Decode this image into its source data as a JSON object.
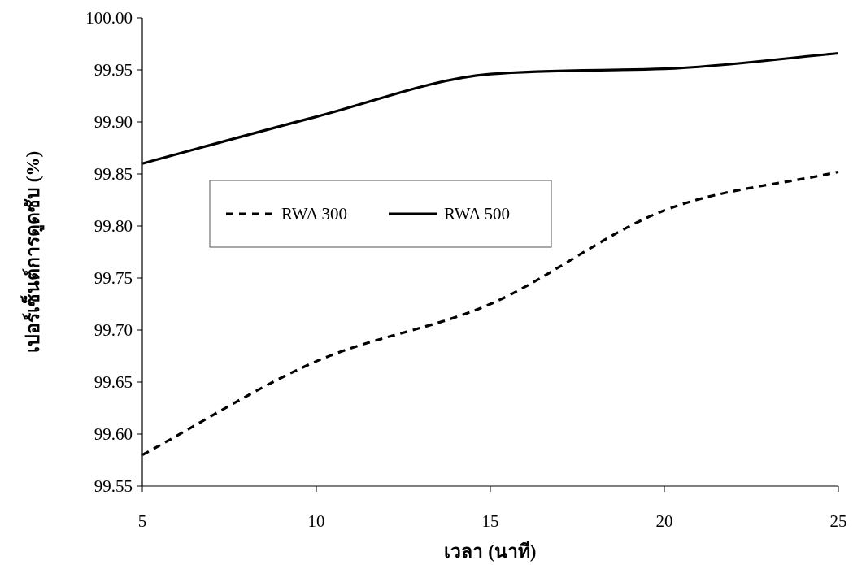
{
  "chart_data": {
    "type": "line",
    "xlabel": "เวลา (นาที)",
    "ylabel": "เปอร์เซ็นต์การดูดซับ (%)",
    "x": [
      5,
      10,
      15,
      20,
      25
    ],
    "series": [
      {
        "name": "RWA 300",
        "color": "#000000",
        "line_style": "dashed",
        "values": [
          99.58,
          99.67,
          99.725,
          99.815,
          99.852
        ]
      },
      {
        "name": "RWA 500",
        "color": "#000000",
        "line_style": "solid",
        "values": [
          99.86,
          99.905,
          99.946,
          99.951,
          99.966
        ]
      }
    ],
    "xlim": [
      5,
      25
    ],
    "xticks": [
      5,
      10,
      15,
      20,
      25
    ],
    "ylim": [
      99.55,
      100
    ],
    "yticks": [
      99.55,
      {
        "value": 99.6,
        "label": "99.60"
      },
      99.65,
      {
        "value": 99.7,
        "label": "99.70"
      },
      99.75,
      {
        "value": 99.8,
        "label": "99.80"
      },
      99.85,
      {
        "value": 99.9,
        "label": "99.90"
      },
      99.95,
      {
        "value": 100,
        "label": "100.00"
      }
    ],
    "grid": false,
    "legend": "left",
    "marker": "none"
  }
}
